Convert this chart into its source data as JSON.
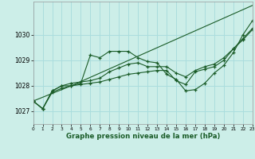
{
  "background_color": "#cceee8",
  "grid_color": "#aadddd",
  "line_color": "#1a5c28",
  "xlabel": "Graphe pression niveau de la mer (hPa)",
  "xlim": [
    0,
    23
  ],
  "ylim": [
    1026.5,
    1031.3
  ],
  "yticks": [
    1027,
    1028,
    1029,
    1030
  ],
  "xticks": [
    0,
    1,
    2,
    3,
    4,
    5,
    6,
    7,
    8,
    9,
    10,
    11,
    12,
    13,
    14,
    15,
    16,
    17,
    18,
    19,
    20,
    21,
    22,
    23
  ],
  "series": [
    {
      "x": [
        0,
        4,
        23
      ],
      "y": [
        1027.4,
        1028.0,
        1031.15
      ]
    },
    {
      "x": [
        0,
        1,
        2,
        3,
        4,
        5,
        6,
        7,
        8,
        9,
        10,
        11,
        12,
        13,
        14,
        15,
        16,
        17,
        18,
        19,
        20,
        21,
        22,
        23
      ],
      "y": [
        1027.4,
        1027.1,
        1027.8,
        1028.0,
        1028.0,
        1028.1,
        1029.2,
        1029.1,
        1029.35,
        1029.35,
        1029.35,
        1029.1,
        1028.95,
        1028.9,
        1028.45,
        1028.25,
        1027.8,
        1027.85,
        1028.1,
        1028.5,
        1028.8,
        1029.3,
        1030.0,
        1030.55
      ]
    },
    {
      "x": [
        0,
        1,
        2,
        3,
        4,
        5,
        6,
        7,
        8,
        9,
        10,
        11,
        12,
        13,
        14,
        15,
        16,
        17,
        18,
        19,
        20,
        21,
        22,
        23
      ],
      "y": [
        1027.4,
        1027.1,
        1027.8,
        1028.0,
        1028.1,
        1028.15,
        1028.2,
        1028.3,
        1028.55,
        1028.7,
        1028.85,
        1028.9,
        1028.75,
        1028.75,
        1028.75,
        1028.5,
        1028.35,
        1028.6,
        1028.75,
        1028.85,
        1029.1,
        1029.45,
        1029.85,
        1030.25
      ]
    },
    {
      "x": [
        0,
        1,
        2,
        3,
        4,
        5,
        6,
        7,
        8,
        9,
        10,
        11,
        12,
        13,
        14,
        15,
        16,
        17,
        18,
        19,
        20,
        21,
        22,
        23
      ],
      "y": [
        1027.4,
        1027.1,
        1027.75,
        1027.9,
        1028.0,
        1028.05,
        1028.1,
        1028.15,
        1028.25,
        1028.35,
        1028.45,
        1028.5,
        1028.55,
        1028.6,
        1028.6,
        1028.2,
        1028.05,
        1028.55,
        1028.65,
        1028.75,
        1029.0,
        1029.45,
        1029.8,
        1030.2
      ]
    }
  ]
}
